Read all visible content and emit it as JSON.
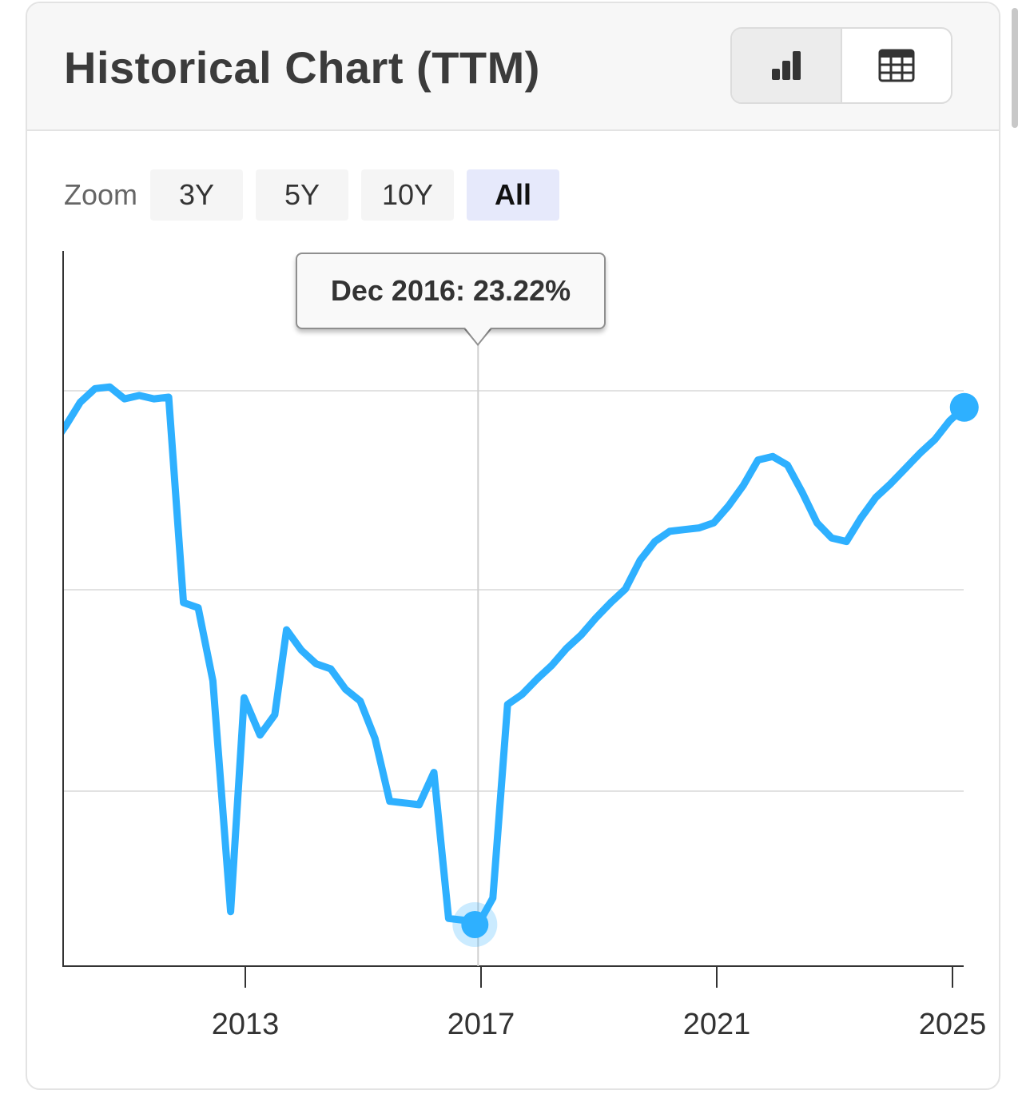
{
  "header": {
    "title": "Historical Chart (TTM)",
    "view_toggle": [
      {
        "icon": "bar-chart-icon",
        "active": true
      },
      {
        "icon": "table-icon",
        "active": false
      }
    ]
  },
  "zoom": {
    "label": "Zoom",
    "options": [
      "3Y",
      "5Y",
      "10Y",
      "All"
    ],
    "selected": "All"
  },
  "tooltip": {
    "text": "Dec 2016: 23.22%"
  },
  "colors": {
    "line": "#2eb0ff",
    "grid": "#e2e2e2",
    "axis": "#333333",
    "active_zoom_bg": "#e6e9fb"
  },
  "chart_data": {
    "type": "line",
    "title": "Historical Chart (TTM)",
    "xlabel": "",
    "ylabel": "",
    "x_ticks": [
      2013,
      2017,
      2021,
      2025
    ],
    "y_gridlines": 3,
    "grid": true,
    "highlight": {
      "x": 2016.95,
      "y": 23.22,
      "label": "Dec 2016: 23.22%"
    },
    "series": [
      {
        "name": "",
        "points": [
          [
            2009.75,
            37.4
          ],
          [
            2009.95,
            37.9
          ],
          [
            2010.2,
            38.6
          ],
          [
            2010.45,
            39.0
          ],
          [
            2010.7,
            39.05
          ],
          [
            2010.95,
            38.7
          ],
          [
            2011.2,
            38.8
          ],
          [
            2011.45,
            38.7
          ],
          [
            2011.7,
            38.75
          ],
          [
            2011.95,
            32.7
          ],
          [
            2012.2,
            32.55
          ],
          [
            2012.45,
            30.4
          ],
          [
            2012.75,
            23.6
          ],
          [
            2012.98,
            29.9
          ],
          [
            2013.25,
            28.8
          ],
          [
            2013.5,
            29.4
          ],
          [
            2013.7,
            31.9
          ],
          [
            2013.95,
            31.3
          ],
          [
            2014.2,
            30.9
          ],
          [
            2014.45,
            30.75
          ],
          [
            2014.7,
            30.15
          ],
          [
            2014.95,
            29.8
          ],
          [
            2015.2,
            28.7
          ],
          [
            2015.45,
            26.85
          ],
          [
            2015.7,
            26.8
          ],
          [
            2015.95,
            26.75
          ],
          [
            2016.2,
            27.7
          ],
          [
            2016.45,
            23.4
          ],
          [
            2016.7,
            23.35
          ],
          [
            2016.95,
            23.22
          ],
          [
            2017.2,
            24.0
          ],
          [
            2017.45,
            29.7
          ],
          [
            2017.7,
            30.0
          ],
          [
            2017.95,
            30.45
          ],
          [
            2018.2,
            30.85
          ],
          [
            2018.45,
            31.35
          ],
          [
            2018.7,
            31.75
          ],
          [
            2018.95,
            32.25
          ],
          [
            2019.2,
            32.7
          ],
          [
            2019.45,
            33.1
          ],
          [
            2019.7,
            33.95
          ],
          [
            2019.95,
            34.5
          ],
          [
            2020.2,
            34.8
          ],
          [
            2020.45,
            34.85
          ],
          [
            2020.7,
            34.9
          ],
          [
            2020.95,
            35.05
          ],
          [
            2021.2,
            35.55
          ],
          [
            2021.45,
            36.15
          ],
          [
            2021.7,
            36.9
          ],
          [
            2021.95,
            37.0
          ],
          [
            2022.2,
            36.75
          ],
          [
            2022.45,
            35.95
          ],
          [
            2022.7,
            35.05
          ],
          [
            2022.95,
            34.6
          ],
          [
            2023.2,
            34.5
          ],
          [
            2023.45,
            35.2
          ],
          [
            2023.7,
            35.8
          ],
          [
            2023.95,
            36.2
          ],
          [
            2024.2,
            36.65
          ],
          [
            2024.45,
            37.1
          ],
          [
            2024.7,
            37.5
          ],
          [
            2024.95,
            38.05
          ],
          [
            2025.2,
            38.45
          ]
        ]
      }
    ]
  }
}
